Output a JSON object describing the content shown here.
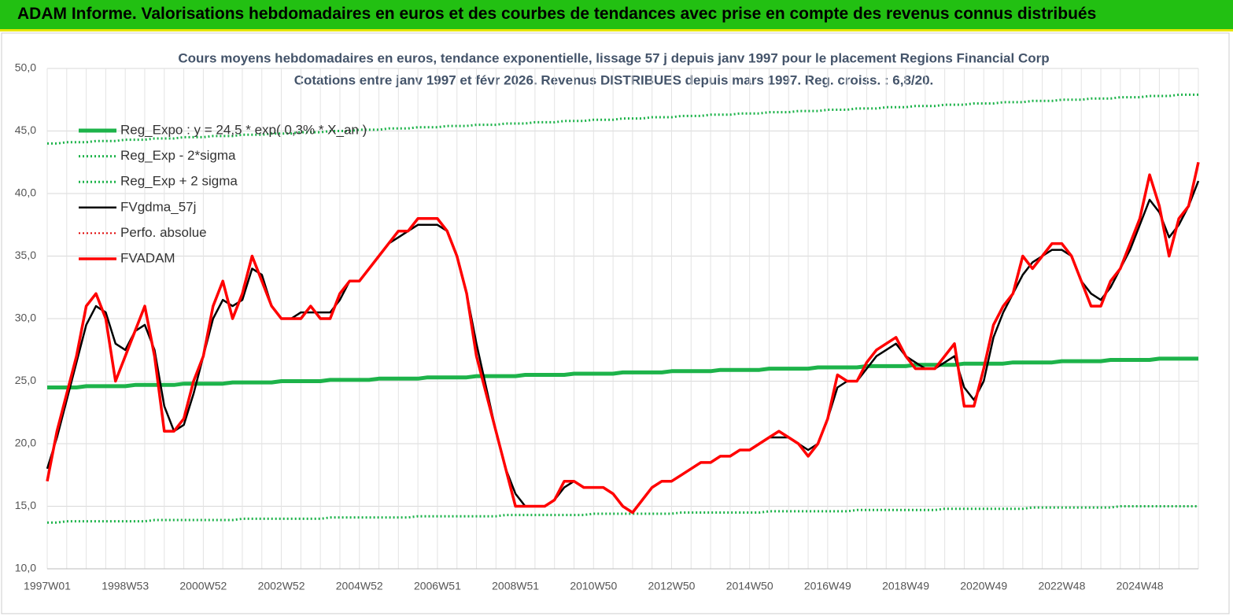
{
  "header": {
    "title": "ADAM Informe. Valorisations hebdomadaires en euros et des courbes de tendances avec prise en compte des revenus connus distribués"
  },
  "chart_data": {
    "type": "line",
    "title": "Cours moyens hebdomadaires en euros, tendance exponentielle, lissage 57 j depuis janv 1997 pour le placement Regions Financial Corp",
    "subtitle": "Cotations entre janv 1997 et févr 2026. Revenus DISTRIBUES depuis mars 1997. Reg. croiss. : 6,8/20.",
    "ylim": [
      10,
      50
    ],
    "yticks": [
      {
        "value": 10,
        "label": "10,0"
      },
      {
        "value": 15,
        "label": "15,0"
      },
      {
        "value": 20,
        "label": "20,0"
      },
      {
        "value": 25,
        "label": "25,0"
      },
      {
        "value": 30,
        "label": "30,0"
      },
      {
        "value": 35,
        "label": "35,0"
      },
      {
        "value": 40,
        "label": "40,0"
      },
      {
        "value": 45,
        "label": "45,0"
      },
      {
        "value": 50,
        "label": "50,0"
      }
    ],
    "grid": true,
    "legend": "top-left",
    "categories": [
      "1997W01",
      null,
      null,
      null,
      null,
      null,
      null,
      null,
      "1998W53",
      null,
      null,
      null,
      null,
      null,
      null,
      null,
      "2000W52",
      null,
      null,
      null,
      null,
      null,
      null,
      null,
      "2002W52",
      null,
      null,
      null,
      null,
      null,
      null,
      null,
      "2004W52",
      null,
      null,
      null,
      null,
      null,
      null,
      null,
      "2006W51",
      null,
      null,
      null,
      null,
      null,
      null,
      null,
      "2008W51",
      null,
      null,
      null,
      null,
      null,
      null,
      null,
      "2010W50",
      null,
      null,
      null,
      null,
      null,
      null,
      null,
      "2012W50",
      null,
      null,
      null,
      null,
      null,
      null,
      null,
      "2014W50",
      null,
      null,
      null,
      null,
      null,
      null,
      null,
      "2016W49",
      null,
      null,
      null,
      null,
      null,
      null,
      null,
      "2018W49",
      null,
      null,
      null,
      null,
      null,
      null,
      null,
      "2020W49",
      null,
      null,
      null,
      null,
      null,
      null,
      null,
      "2022W48",
      null,
      null,
      null,
      null,
      null,
      null,
      null,
      "2024W48",
      null,
      null,
      null,
      null,
      null,
      null
    ],
    "series": [
      {
        "name": "Reg_Expo : y = 24,5 * exp( 0,3% * X_an )",
        "color": "#1db34a",
        "style": "solid",
        "width": 5,
        "values": [
          24.5,
          24.5,
          24.5,
          24.5,
          24.6,
          24.6,
          24.6,
          24.6,
          24.6,
          24.7,
          24.7,
          24.7,
          24.7,
          24.7,
          24.8,
          24.8,
          24.8,
          24.8,
          24.8,
          24.9,
          24.9,
          24.9,
          24.9,
          24.9,
          25.0,
          25.0,
          25.0,
          25.0,
          25.0,
          25.1,
          25.1,
          25.1,
          25.1,
          25.1,
          25.2,
          25.2,
          25.2,
          25.2,
          25.2,
          25.3,
          25.3,
          25.3,
          25.3,
          25.3,
          25.4,
          25.4,
          25.4,
          25.4,
          25.4,
          25.5,
          25.5,
          25.5,
          25.5,
          25.5,
          25.6,
          25.6,
          25.6,
          25.6,
          25.6,
          25.7,
          25.7,
          25.7,
          25.7,
          25.7,
          25.8,
          25.8,
          25.8,
          25.8,
          25.8,
          25.9,
          25.9,
          25.9,
          25.9,
          25.9,
          26.0,
          26.0,
          26.0,
          26.0,
          26.0,
          26.1,
          26.1,
          26.1,
          26.1,
          26.1,
          26.2,
          26.2,
          26.2,
          26.2,
          26.2,
          26.3,
          26.3,
          26.3,
          26.3,
          26.3,
          26.4,
          26.4,
          26.4,
          26.4,
          26.4,
          26.5,
          26.5,
          26.5,
          26.5,
          26.5,
          26.6,
          26.6,
          26.6,
          26.6,
          26.6,
          26.7,
          26.7,
          26.7,
          26.7,
          26.7,
          26.8,
          26.8,
          26.8,
          26.8,
          26.8
        ]
      },
      {
        "name": "Reg_Exp - 2*sigma",
        "color": "#1db34a",
        "style": "dotted",
        "width": 3,
        "values": [
          13.7,
          13.7,
          13.8,
          13.8,
          13.8,
          13.8,
          13.8,
          13.8,
          13.8,
          13.8,
          13.8,
          13.9,
          13.9,
          13.9,
          13.9,
          13.9,
          13.9,
          13.9,
          13.9,
          13.9,
          14.0,
          14.0,
          14.0,
          14.0,
          14.0,
          14.0,
          14.0,
          14.0,
          14.0,
          14.1,
          14.1,
          14.1,
          14.1,
          14.1,
          14.1,
          14.1,
          14.1,
          14.1,
          14.2,
          14.2,
          14.2,
          14.2,
          14.2,
          14.2,
          14.2,
          14.2,
          14.2,
          14.3,
          14.3,
          14.3,
          14.3,
          14.3,
          14.3,
          14.3,
          14.3,
          14.3,
          14.4,
          14.4,
          14.4,
          14.4,
          14.4,
          14.4,
          14.4,
          14.4,
          14.4,
          14.5,
          14.5,
          14.5,
          14.5,
          14.5,
          14.5,
          14.5,
          14.5,
          14.5,
          14.6,
          14.6,
          14.6,
          14.6,
          14.6,
          14.6,
          14.6,
          14.6,
          14.6,
          14.7,
          14.7,
          14.7,
          14.7,
          14.7,
          14.7,
          14.7,
          14.7,
          14.7,
          14.8,
          14.8,
          14.8,
          14.8,
          14.8,
          14.8,
          14.8,
          14.8,
          14.8,
          14.9,
          14.9,
          14.9,
          14.9,
          14.9,
          14.9,
          14.9,
          14.9,
          14.9,
          15.0,
          15.0,
          15.0,
          15.0,
          15.0,
          15.0,
          15.0,
          15.0,
          15.0
        ]
      },
      {
        "name": "Reg_Exp + 2 sigma",
        "color": "#1db34a",
        "style": "dotted",
        "width": 3,
        "values": [
          44.0,
          44.0,
          44.1,
          44.1,
          44.1,
          44.2,
          44.2,
          44.2,
          44.3,
          44.3,
          44.3,
          44.4,
          44.4,
          44.4,
          44.5,
          44.5,
          44.5,
          44.6,
          44.6,
          44.6,
          44.7,
          44.7,
          44.7,
          44.8,
          44.8,
          44.8,
          44.9,
          44.9,
          44.9,
          45.0,
          45.0,
          45.0,
          45.1,
          45.1,
          45.1,
          45.2,
          45.2,
          45.2,
          45.3,
          45.3,
          45.3,
          45.4,
          45.4,
          45.4,
          45.5,
          45.5,
          45.5,
          45.6,
          45.6,
          45.6,
          45.7,
          45.7,
          45.7,
          45.8,
          45.8,
          45.8,
          45.9,
          45.9,
          45.9,
          46.0,
          46.0,
          46.0,
          46.1,
          46.1,
          46.1,
          46.2,
          46.2,
          46.2,
          46.3,
          46.3,
          46.3,
          46.4,
          46.4,
          46.4,
          46.5,
          46.5,
          46.5,
          46.6,
          46.6,
          46.6,
          46.7,
          46.7,
          46.7,
          46.8,
          46.8,
          46.8,
          46.9,
          46.9,
          46.9,
          47.0,
          47.0,
          47.0,
          47.1,
          47.1,
          47.1,
          47.2,
          47.2,
          47.2,
          47.3,
          47.3,
          47.3,
          47.4,
          47.4,
          47.4,
          47.5,
          47.5,
          47.5,
          47.6,
          47.6,
          47.6,
          47.7,
          47.7,
          47.7,
          47.8,
          47.8,
          47.8,
          47.9,
          47.9,
          47.9
        ]
      },
      {
        "name": "FVgdma_57j",
        "color": "#000000",
        "style": "solid",
        "width": 2.5,
        "values": [
          18,
          20.5,
          23.5,
          26.5,
          29.5,
          31,
          30.5,
          28,
          27.5,
          29,
          29.5,
          27.5,
          23,
          21,
          21.5,
          24,
          27,
          30,
          31.5,
          31,
          31.5,
          34,
          33.5,
          31,
          30,
          30,
          30.5,
          30.5,
          30.5,
          30.5,
          31.5,
          33,
          33,
          34,
          35,
          36,
          36.5,
          37,
          37.5,
          37.5,
          37.5,
          37,
          35,
          32,
          28,
          24.5,
          21,
          18,
          16,
          15,
          15,
          15,
          15.5,
          16.5,
          17,
          16.5,
          16.5,
          16.5,
          16,
          15,
          14.5,
          15.5,
          16.5,
          17,
          17,
          17.5,
          18,
          18.5,
          18.5,
          19,
          19,
          19.5,
          19.5,
          20,
          20.5,
          20.5,
          20.5,
          20,
          19.5,
          20,
          22,
          24.5,
          25,
          25,
          26,
          27,
          27.5,
          28,
          27,
          26.5,
          26,
          26,
          26.5,
          27,
          24.5,
          23.5,
          25,
          28.5,
          30.5,
          32,
          33.5,
          34.5,
          35,
          35.5,
          35.5,
          35,
          33,
          32,
          31.5,
          32.5,
          34,
          35.5,
          37.5,
          39.5,
          38.5,
          36.5,
          37.5,
          39,
          41
        ]
      },
      {
        "name": "Perfo. absolue",
        "color": "#e00000",
        "style": "dotted",
        "width": 2,
        "values": [
          null,
          null,
          null,
          null,
          null,
          null,
          null,
          null,
          null,
          null,
          null,
          null,
          null,
          null,
          null,
          null,
          null,
          null,
          null,
          null,
          null,
          null,
          null,
          null,
          null,
          null,
          null,
          null,
          null,
          null,
          null,
          null,
          null,
          null,
          null,
          null,
          null,
          null,
          null,
          null,
          null,
          null,
          null,
          null,
          null,
          null,
          null,
          null,
          null,
          null,
          null,
          null,
          null,
          null,
          null,
          null,
          null,
          null,
          null,
          null,
          null,
          null,
          null,
          null,
          null,
          null,
          null,
          null,
          null,
          null,
          null,
          null,
          null,
          null,
          null,
          null,
          null,
          null,
          null,
          null,
          null,
          null,
          null,
          null,
          null,
          null,
          null,
          null,
          null,
          null,
          null,
          null,
          null,
          null,
          null,
          null,
          null,
          null,
          null,
          null,
          null,
          null,
          null,
          null,
          null,
          null,
          null,
          null,
          null,
          null,
          null,
          null,
          null,
          null,
          null,
          null,
          null,
          null,
          null
        ]
      },
      {
        "name": "FVADAM",
        "color": "#ff0000",
        "style": "solid",
        "width": 3.5,
        "values": [
          17,
          21,
          24,
          27,
          31,
          32,
          30,
          25,
          27,
          29,
          31,
          27,
          21,
          21,
          22,
          25,
          27,
          31,
          33,
          30,
          32,
          35,
          33,
          31,
          30,
          30,
          30,
          31,
          30,
          30,
          32,
          33,
          33,
          34,
          35,
          36,
          37,
          37,
          38,
          38,
          38,
          37,
          35,
          32,
          27,
          24,
          21,
          18,
          15,
          15,
          15,
          15,
          15.5,
          17,
          17,
          16.5,
          16.5,
          16.5,
          16,
          15,
          14.5,
          15.5,
          16.5,
          17,
          17,
          17.5,
          18,
          18.5,
          18.5,
          19,
          19,
          19.5,
          19.5,
          20,
          20.5,
          21,
          20.5,
          20,
          19,
          20,
          22,
          25.5,
          25,
          25,
          26.5,
          27.5,
          28,
          28.5,
          27,
          26,
          26,
          26,
          27,
          28,
          23,
          23,
          26,
          29.5,
          31,
          32,
          35,
          34,
          35,
          36,
          36,
          35,
          33,
          31,
          31,
          33,
          34,
          36,
          38,
          41.5,
          39,
          35,
          38,
          39,
          42.5
        ]
      }
    ]
  }
}
